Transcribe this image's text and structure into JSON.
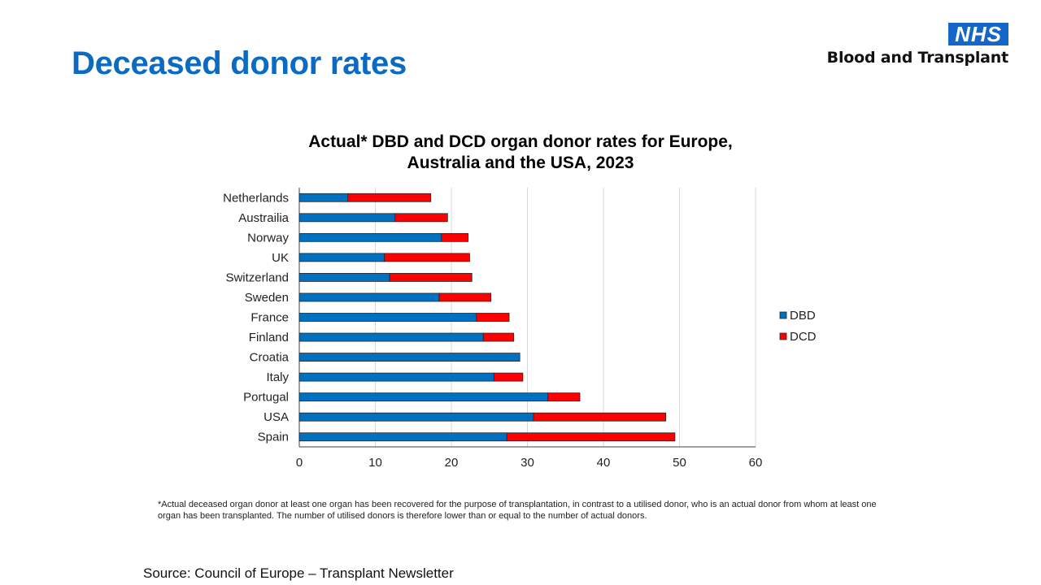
{
  "page": {
    "title": "Deceased donor rates",
    "logo_badge": "NHS",
    "logo_text": "Blood and Transplant",
    "footnote": "*Actual deceased organ donor at least one organ has been recovered for the purpose of transplantation, in contrast to a utilised donor, who is an actual donor from whom at least one organ has been transplanted. The number of utilised donors is therefore lower than or equal to the number of actual donors.",
    "source": "Source: Council of Europe – Transplant Newsletter"
  },
  "chart_data": {
    "type": "bar",
    "orientation": "horizontal",
    "stacked": true,
    "title_lines": [
      "Actual* DBD and DCD organ donor rates for Europe,",
      "Australia and the USA, 2023"
    ],
    "categories": [
      "Netherlands",
      "Austrailia",
      "Norway",
      "UK",
      "Switzerland",
      "Sweden",
      "France",
      "Finland",
      "Croatia",
      "Italy",
      "Portugal",
      "USA",
      "Spain"
    ],
    "series": [
      {
        "name": "DBD",
        "color": "#0070c0",
        "values": [
          6.4,
          12.6,
          18.7,
          11.2,
          11.9,
          18.4,
          23.3,
          24.2,
          29.0,
          25.6,
          32.7,
          30.8,
          27.3
        ]
      },
      {
        "name": "DCD",
        "color": "#ff0000",
        "values": [
          10.9,
          6.9,
          3.5,
          11.2,
          10.8,
          6.8,
          4.3,
          4.0,
          0.0,
          3.8,
          4.2,
          17.4,
          22.1
        ]
      }
    ],
    "xlabel": "",
    "ylabel": "",
    "xlim": [
      0,
      60
    ],
    "xticks": [
      0,
      10,
      20,
      30,
      40,
      50,
      60
    ],
    "grid": "vertical",
    "legend_position": "right"
  }
}
